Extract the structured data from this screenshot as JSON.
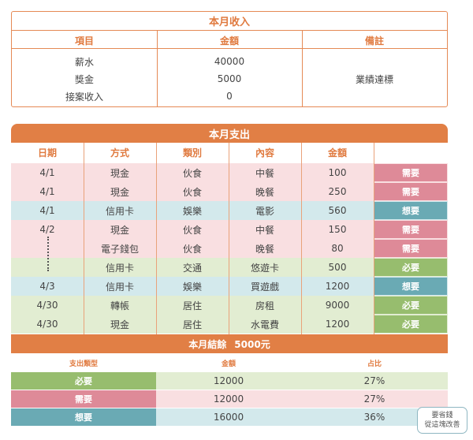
{
  "income": {
    "title": "本月收入",
    "headers": [
      "項目",
      "金額",
      "備註"
    ],
    "rows": [
      {
        "item": "薪水",
        "amount": "40000"
      },
      {
        "item": "獎金",
        "amount": "5000"
      },
      {
        "item": "接案收入",
        "amount": "0"
      }
    ],
    "note": "業績達標"
  },
  "expense": {
    "title": "本月支出",
    "headers": [
      "日期",
      "方式",
      "類別",
      "內容",
      "金額"
    ],
    "rows": [
      {
        "date": "4/1",
        "method": "現金",
        "category": "伙食",
        "content": "中餐",
        "amount": "100",
        "tag": "需要",
        "tag_color": "#de8a98",
        "bg": "#f9dfe1"
      },
      {
        "date": "4/1",
        "method": "現金",
        "category": "伙食",
        "content": "晚餐",
        "amount": "250",
        "tag": "需要",
        "tag_color": "#de8a98",
        "bg": "#f9dfe1"
      },
      {
        "date": "4/1",
        "method": "信用卡",
        "category": "娛樂",
        "content": "電影",
        "amount": "560",
        "tag": "想要",
        "tag_color": "#6aaab4",
        "bg": "#d3e9ec"
      },
      {
        "date": "4/2",
        "method": "現金",
        "category": "伙食",
        "content": "中餐",
        "amount": "150",
        "tag": "需要",
        "tag_color": "#de8a98",
        "bg": "#f9dfe1"
      },
      {
        "date": "",
        "method": "電子錢包",
        "category": "伙食",
        "content": "晚餐",
        "amount": "80",
        "tag": "需要",
        "tag_color": "#de8a98",
        "bg": "#f9dfe1"
      },
      {
        "date": "",
        "method": "信用卡",
        "category": "交通",
        "content": "悠遊卡",
        "amount": "500",
        "tag": "必要",
        "tag_color": "#97bd6e",
        "bg": "#e2edd2"
      },
      {
        "date": "4/3",
        "method": "信用卡",
        "category": "娛樂",
        "content": "買遊戲",
        "amount": "1200",
        "tag": "想要",
        "tag_color": "#6aaab4",
        "bg": "#d3e9ec"
      },
      {
        "date": "4/30",
        "method": "轉帳",
        "category": "居住",
        "content": "房租",
        "amount": "9000",
        "tag": "必要",
        "tag_color": "#97bd6e",
        "bg": "#e2edd2"
      },
      {
        "date": "4/30",
        "method": "現金",
        "category": "居住",
        "content": "水電費",
        "amount": "1200",
        "tag": "必要",
        "tag_color": "#97bd6e",
        "bg": "#e2edd2"
      }
    ]
  },
  "balance": {
    "label": "本月結餘",
    "value": "5000元"
  },
  "summary": {
    "headers": [
      "支出類型",
      "金額",
      "占比"
    ],
    "rows": [
      {
        "type": "必要",
        "amount": "12000",
        "ratio": "27%",
        "label_color": "#97bd6e",
        "bg": "#e2edd2"
      },
      {
        "type": "需要",
        "amount": "12000",
        "ratio": "27%",
        "label_color": "#de8a98",
        "bg": "#f9dfe1"
      },
      {
        "type": "想要",
        "amount": "16000",
        "ratio": "36%",
        "label_color": "#6aaab4",
        "bg": "#d3e9ec"
      }
    ],
    "note_line1": "要省錢",
    "note_line2": "從這塊改善"
  }
}
